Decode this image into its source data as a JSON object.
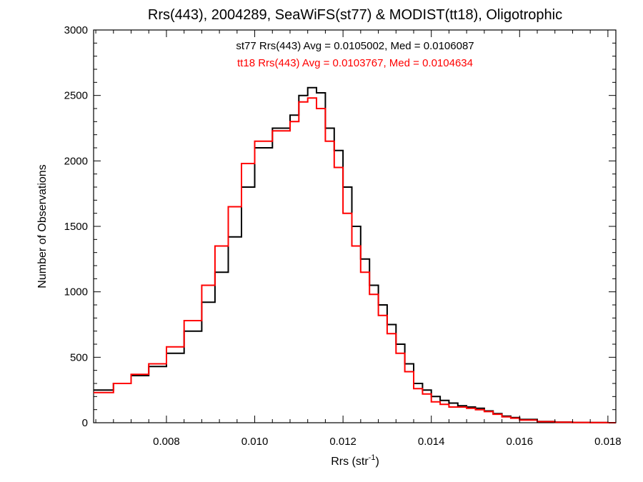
{
  "chart_data": {
    "type": "line",
    "title": "Rrs(443), 2004289, SeaWiFS(st77) & MODIST(tt18), Oligotrophic",
    "xlabel": "Rrs (str",
    "xlabel_sup": "-1",
    "xlabel_end": ")",
    "ylabel": "Number of Observations",
    "xlim": [
      0.00635,
      0.01818
    ],
    "ylim": [
      0,
      3000
    ],
    "xticks": [
      0.008,
      0.01,
      0.012,
      0.014,
      0.016,
      0.018
    ],
    "xtick_labels": [
      "0.008",
      "0.010",
      "0.012",
      "0.014",
      "0.016",
      "0.018"
    ],
    "yticks": [
      0,
      500,
      1000,
      1500,
      2000,
      2500,
      3000
    ],
    "ytick_labels": [
      "0",
      "500",
      "1000",
      "1500",
      "2000",
      "2500",
      "3000"
    ],
    "annotations": [
      {
        "text": "st77 Rrs(443) Avg = 0.0105002, Med = 0.0106087",
        "color": "#000000"
      },
      {
        "text": "tt18 Rrs(443) Avg = 0.0103767, Med = 0.0104634",
        "color": "#ff0000"
      }
    ],
    "series": [
      {
        "color": "#000000",
        "x": [
          0.00635,
          0.0068,
          0.0072,
          0.0076,
          0.008,
          0.0084,
          0.0088,
          0.0091,
          0.0094,
          0.0097,
          0.01,
          0.0104,
          0.0108,
          0.011,
          0.0112,
          0.0114,
          0.0116,
          0.0118,
          0.012,
          0.0122,
          0.0124,
          0.0126,
          0.0128,
          0.013,
          0.0132,
          0.0134,
          0.0136,
          0.0138,
          0.014,
          0.0142,
          0.0144,
          0.0146,
          0.0148,
          0.015,
          0.0152,
          0.0154,
          0.0156,
          0.0158,
          0.016,
          0.0164,
          0.0168,
          0.0172,
          0.0176,
          0.018,
          0.01818
        ],
        "y": [
          250,
          300,
          360,
          430,
          530,
          700,
          920,
          1150,
          1420,
          1800,
          2100,
          2250,
          2350,
          2500,
          2560,
          2520,
          2250,
          2080,
          1800,
          1500,
          1250,
          1050,
          900,
          750,
          600,
          450,
          300,
          250,
          200,
          170,
          150,
          130,
          120,
          110,
          90,
          70,
          50,
          40,
          25,
          10,
          5,
          2,
          1,
          0,
          0
        ]
      },
      {
        "color": "#ff0000",
        "x": [
          0.00635,
          0.0068,
          0.0072,
          0.0076,
          0.008,
          0.0084,
          0.0088,
          0.0091,
          0.0094,
          0.0097,
          0.01,
          0.0104,
          0.0108,
          0.011,
          0.0112,
          0.0114,
          0.0116,
          0.0118,
          0.012,
          0.0122,
          0.0124,
          0.0126,
          0.0128,
          0.013,
          0.0132,
          0.0134,
          0.0136,
          0.0138,
          0.014,
          0.0142,
          0.0144,
          0.0146,
          0.0148,
          0.015,
          0.0152,
          0.0154,
          0.0156,
          0.0158,
          0.016,
          0.0164,
          0.0168,
          0.0172,
          0.0176,
          0.018,
          0.01818
        ],
        "y": [
          230,
          300,
          370,
          450,
          580,
          780,
          1050,
          1350,
          1650,
          1980,
          2150,
          2230,
          2300,
          2450,
          2480,
          2400,
          2150,
          1950,
          1600,
          1350,
          1150,
          980,
          820,
          680,
          530,
          390,
          260,
          220,
          160,
          140,
          120,
          120,
          110,
          100,
          85,
          65,
          45,
          35,
          20,
          8,
          4,
          2,
          1,
          0,
          0
        ]
      }
    ]
  }
}
